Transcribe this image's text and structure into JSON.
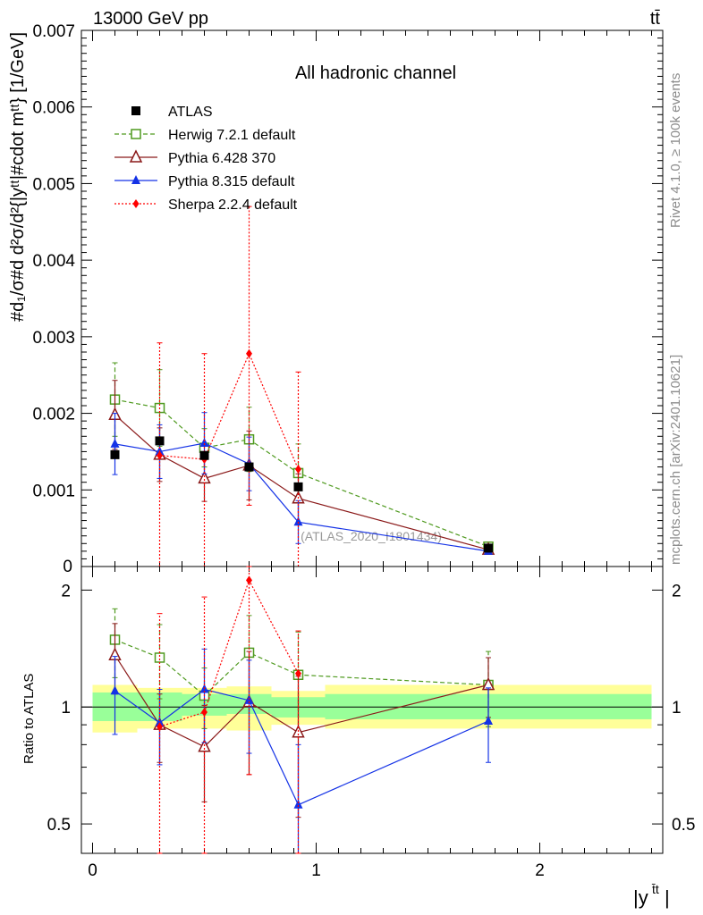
{
  "header": {
    "left": "13000 GeV pp",
    "right": "tt̄"
  },
  "side_labels": {
    "rivet": "Rivet 4.1.0, ≥ 100k events",
    "mcplots": "mcplots.cern.ch [arXiv:2401.10621]"
  },
  "chart_data": {
    "type": "scatter",
    "title": "All hadronic channel",
    "analysis_label": "(ATLAS_2020_I1801434)",
    "xlabel": "|y",
    "xlabel_sup": "t̄t",
    "ylabel": "#d₁/σ#d d²σ/d²{|yᵗᵗ|#cdot mᵗᵗ} [1/GeV]",
    "ratio_ylabel": "Ratio to ATLAS",
    "xlim": [
      -0.05,
      2.55
    ],
    "ylim_main": [
      0,
      0.007
    ],
    "ylim_ratio": [
      0.42,
      2.3
    ],
    "x_ticks": [
      "0",
      "1",
      "2"
    ],
    "y_ticks_main": [
      "0.001",
      "0.002",
      "0.003",
      "0.004",
      "0.005",
      "0.006",
      "0.007"
    ],
    "y_ticks_ratio": [
      "0.5",
      "1",
      "2"
    ],
    "x": [
      0.1,
      0.3,
      0.5,
      0.7,
      0.92,
      1.77
    ],
    "bin_edges": [
      0,
      0.2,
      0.4,
      0.6,
      0.8,
      1.04,
      2.5
    ],
    "data_band": {
      "green": [
        [
          0.92,
          1.09
        ],
        [
          0.92,
          1.09
        ],
        [
          0.95,
          1.08
        ],
        [
          0.96,
          1.08
        ],
        [
          0.94,
          1.06
        ],
        [
          0.93,
          1.08
        ]
      ],
      "yellow": [
        [
          0.86,
          1.14
        ],
        [
          0.88,
          1.12
        ],
        [
          0.88,
          1.12
        ],
        [
          0.87,
          1.13
        ],
        [
          0.9,
          1.1
        ],
        [
          0.88,
          1.14
        ]
      ]
    },
    "series": [
      {
        "name": "ATLAS",
        "color": "#000000",
        "marker": "square-filled",
        "line": "none",
        "values": [
          0.00146,
          0.00164,
          0.00145,
          0.0013,
          0.00104,
          0.00024
        ],
        "err_low": [
          0.0,
          0.0,
          0.0,
          0.0,
          0.0,
          0.0
        ],
        "err_high": [
          0.0,
          0.0,
          0.0,
          0.0,
          0.0,
          0.0
        ],
        "ratio": [
          1.0,
          1.0,
          1.0,
          1.0,
          1.0,
          1.0
        ],
        "ratio_err_low": [
          0,
          0,
          0,
          0,
          0,
          0
        ],
        "ratio_err_high": [
          0,
          0,
          0,
          0,
          0,
          0
        ]
      },
      {
        "name": "Herwig 7.2.1 default",
        "color": "#4f9a1f",
        "marker": "square-open",
        "line": "dashed",
        "values": [
          0.00218,
          0.00207,
          0.00155,
          0.00166,
          0.00122,
          0.00026
        ],
        "err_low": [
          0.00048,
          0.0005,
          0.00025,
          0.00042,
          0.00038,
          2e-05
        ],
        "err_high": [
          0.00048,
          0.0005,
          0.00025,
          0.00042,
          0.00038,
          2e-05
        ],
        "ratio": [
          1.49,
          1.34,
          1.07,
          1.38,
          1.21,
          1.14
        ],
        "ratio_err_low": [
          0.3,
          0.29,
          0.19,
          0.34,
          0.35,
          0.25
        ],
        "ratio_err_high": [
          0.3,
          0.29,
          0.19,
          0.34,
          0.35,
          0.25
        ]
      },
      {
        "name": "Pythia 6.428 370",
        "color": "#8b1a1a",
        "marker": "triangle-open",
        "line": "solid",
        "values": [
          0.00198,
          0.00146,
          0.00115,
          0.00132,
          0.00089,
          0.00022
        ],
        "err_low": [
          0.00045,
          0.00035,
          0.0003,
          0.00045,
          0.00032,
          2e-05
        ],
        "err_high": [
          0.00045,
          0.00035,
          0.0003,
          0.00045,
          0.00032,
          2e-05
        ],
        "ratio": [
          1.36,
          0.9,
          0.79,
          1.03,
          0.86,
          1.14
        ],
        "ratio_err_low": [
          0.28,
          0.18,
          0.22,
          0.36,
          0.34,
          0.2
        ],
        "ratio_err_high": [
          0.28,
          0.18,
          0.22,
          0.36,
          0.34,
          0.2
        ]
      },
      {
        "name": "Pythia 8.315 default",
        "color": "#1432e6",
        "marker": "triangle-filled",
        "line": "solid",
        "values": [
          0.0016,
          0.0015,
          0.00161,
          0.00134,
          0.00058,
          0.0002
        ],
        "err_low": [
          0.0004,
          0.00035,
          0.0004,
          0.00035,
          0.00028,
          2e-05
        ],
        "err_high": [
          0.0004,
          0.00035,
          0.0004,
          0.00035,
          0.00028,
          2e-05
        ],
        "ratio": [
          1.1,
          0.91,
          1.11,
          1.04,
          0.56,
          0.92
        ],
        "ratio_err_low": [
          0.25,
          0.2,
          0.3,
          0.28,
          0.24,
          0.2
        ],
        "ratio_err_high": [
          0.25,
          0.2,
          0.3,
          0.28,
          0.24,
          0.2
        ]
      },
      {
        "name": "Sherpa 2.2.4 default",
        "color": "#ff0000",
        "marker": "diamond-filled",
        "line": "dotted",
        "values": [
          null,
          0.00145,
          0.0014,
          0.00278,
          0.00127,
          null
        ],
        "err_low": [
          0,
          0.00145,
          0.0014,
          0.00198,
          0.00127,
          0
        ],
        "err_high": [
          0,
          0.00147,
          0.00138,
          0.00192,
          0.00127,
          0
        ],
        "ratio": [
          null,
          0.89,
          0.97,
          2.12,
          1.22,
          null
        ],
        "ratio_err_low": [
          0,
          0.5,
          0.55,
          1.45,
          0.8,
          0
        ],
        "ratio_err_high": [
          0,
          0.85,
          0.95,
          0.2,
          0.35,
          0
        ]
      }
    ],
    "legend_position": "top-left"
  }
}
